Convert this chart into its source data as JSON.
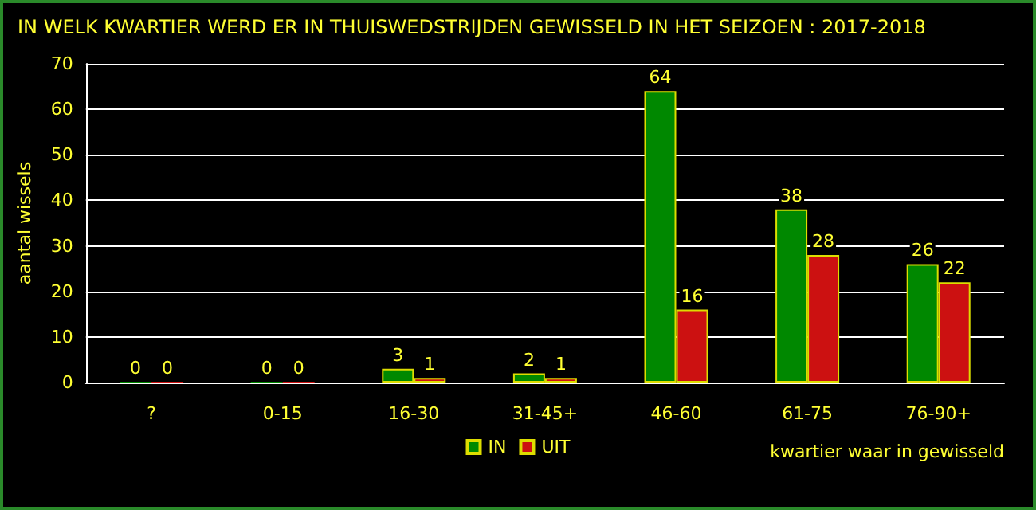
{
  "chart_data": {
    "type": "bar",
    "title": "IN WELK KWARTIER WERD ER IN THUISWEDSTRIJDEN GEWISSELD IN HET SEIZOEN : 2017-2018",
    "xlabel": "kwartier waar in gewisseld",
    "ylabel": "aantal wissels",
    "categories": [
      "?",
      "0-15",
      "16-30",
      "31-45+",
      "46-60",
      "61-75",
      "76-90+"
    ],
    "series": [
      {
        "name": "IN",
        "color": "#008800",
        "values": [
          0,
          0,
          3,
          2,
          64,
          38,
          26
        ]
      },
      {
        "name": "UIT",
        "color": "#cc1111",
        "values": [
          0,
          0,
          1,
          1,
          16,
          28,
          22
        ]
      }
    ],
    "ylim": [
      0,
      70
    ],
    "yticks": [
      0,
      10,
      20,
      30,
      40,
      50,
      60,
      70
    ],
    "grid": "y",
    "legend": "bottom",
    "data_labels": true
  }
}
